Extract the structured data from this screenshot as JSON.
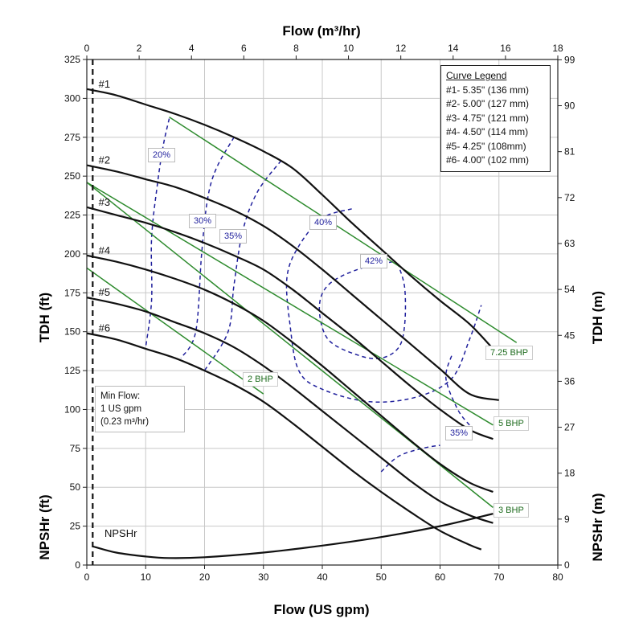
{
  "chart_data": {
    "type": "line",
    "x_axis_bottom": {
      "label": "Flow (US gpm)",
      "range": [
        0,
        80
      ],
      "ticks": [
        0,
        10,
        20,
        30,
        40,
        50,
        60,
        70,
        80
      ]
    },
    "x_axis_top": {
      "label": "Flow (m³/hr)",
      "range": [
        0,
        18
      ],
      "ticks": [
        0,
        2,
        4,
        6,
        8,
        10,
        12,
        14,
        16,
        18
      ]
    },
    "y_axis_left": {
      "label": "TDH (ft)",
      "label_lower": "NPSHr (ft)",
      "range": [
        0,
        325
      ],
      "ticks": [
        0,
        25,
        50,
        75,
        100,
        125,
        150,
        175,
        200,
        225,
        250,
        275,
        300,
        325
      ]
    },
    "y_axis_right": {
      "label": "TDH (m)",
      "label_lower": "NPSHr (m)",
      "ticks": [
        "0",
        "9",
        "18",
        "27",
        "36",
        "45",
        "54",
        "63",
        "72",
        "81",
        "90",
        "99"
      ]
    },
    "grid": true,
    "legend": {
      "title": "Curve Legend",
      "entries": [
        "#1- 5.35\" (136 mm)",
        "#2- 5.00\" (127 mm)",
        "#3- 4.75\" (121 mm)",
        "#4- 4.50\" (114 mm)",
        "#5- 4.25\" (108mm)",
        "#6- 4.00\" (102 mm)"
      ]
    },
    "series": [
      {
        "name": "#1",
        "x": [
          0,
          5,
          10,
          15,
          20,
          25,
          30,
          35,
          40,
          45,
          50,
          55,
          60,
          65,
          69
        ],
        "y": [
          306,
          302,
          296,
          290,
          283,
          275,
          266,
          255,
          238,
          220,
          203,
          186,
          170,
          155,
          139
        ]
      },
      {
        "name": "#2",
        "x": [
          0,
          5,
          10,
          15,
          20,
          25,
          30,
          35,
          40,
          45,
          50,
          55,
          60,
          65,
          70
        ],
        "y": [
          257,
          253,
          248,
          243,
          236,
          228,
          218,
          205,
          190,
          174,
          158,
          142,
          126,
          110,
          106
        ]
      },
      {
        "name": "#3",
        "x": [
          0,
          5,
          10,
          15,
          20,
          25,
          30,
          35,
          40,
          45,
          50,
          55,
          60,
          65,
          69
        ],
        "y": [
          230,
          225,
          220,
          214,
          207,
          199,
          190,
          177,
          162,
          147,
          131,
          115,
          100,
          87,
          81
        ]
      },
      {
        "name": "#4",
        "x": [
          0,
          5,
          10,
          15,
          20,
          25,
          30,
          35,
          40,
          45,
          50,
          55,
          60,
          65,
          69
        ],
        "y": [
          199,
          195,
          190,
          184,
          177,
          168,
          157,
          143,
          128,
          112,
          96,
          80,
          65,
          53,
          47
        ]
      },
      {
        "name": "#5",
        "x": [
          0,
          5,
          10,
          15,
          20,
          25,
          30,
          35,
          40,
          45,
          50,
          55,
          60,
          65,
          69
        ],
        "y": [
          172,
          168,
          163,
          156,
          149,
          140,
          128,
          114,
          99,
          84,
          69,
          54,
          41,
          32,
          27
        ]
      },
      {
        "name": "#6",
        "x": [
          0,
          5,
          10,
          15,
          20,
          25,
          30,
          35,
          40,
          45,
          50,
          55,
          60,
          65,
          67
        ],
        "y": [
          149,
          145,
          139,
          133,
          125,
          116,
          105,
          91,
          76,
          61,
          47,
          34,
          22,
          13,
          10
        ]
      },
      {
        "name": "NPSHr",
        "x": [
          1,
          5,
          10,
          14,
          20,
          30,
          40,
          50,
          60,
          69
        ],
        "y": [
          12,
          8,
          5.5,
          4.5,
          5,
          8,
          12.5,
          18,
          25,
          33
        ]
      }
    ],
    "bhp_lines": [
      {
        "label": "2 BHP",
        "x": [
          0,
          30
        ],
        "y": [
          191,
          110
        ]
      },
      {
        "label": "3 BHP",
        "x": [
          0,
          69
        ],
        "y": [
          246,
          37
        ]
      },
      {
        "label": "5 BHP",
        "x": [
          0,
          69
        ],
        "y": [
          246,
          90
        ]
      },
      {
        "label": "7.25 BHP",
        "x": [
          14,
          73
        ],
        "y": [
          288,
          143
        ]
      }
    ],
    "efficiency_labels": [
      "20%",
      "30%",
      "35%",
      "40%",
      "42%",
      "35%"
    ],
    "min_flow_note": [
      "Min Flow:",
      "1 US gpm",
      "(0.23 m³/hr)"
    ]
  }
}
